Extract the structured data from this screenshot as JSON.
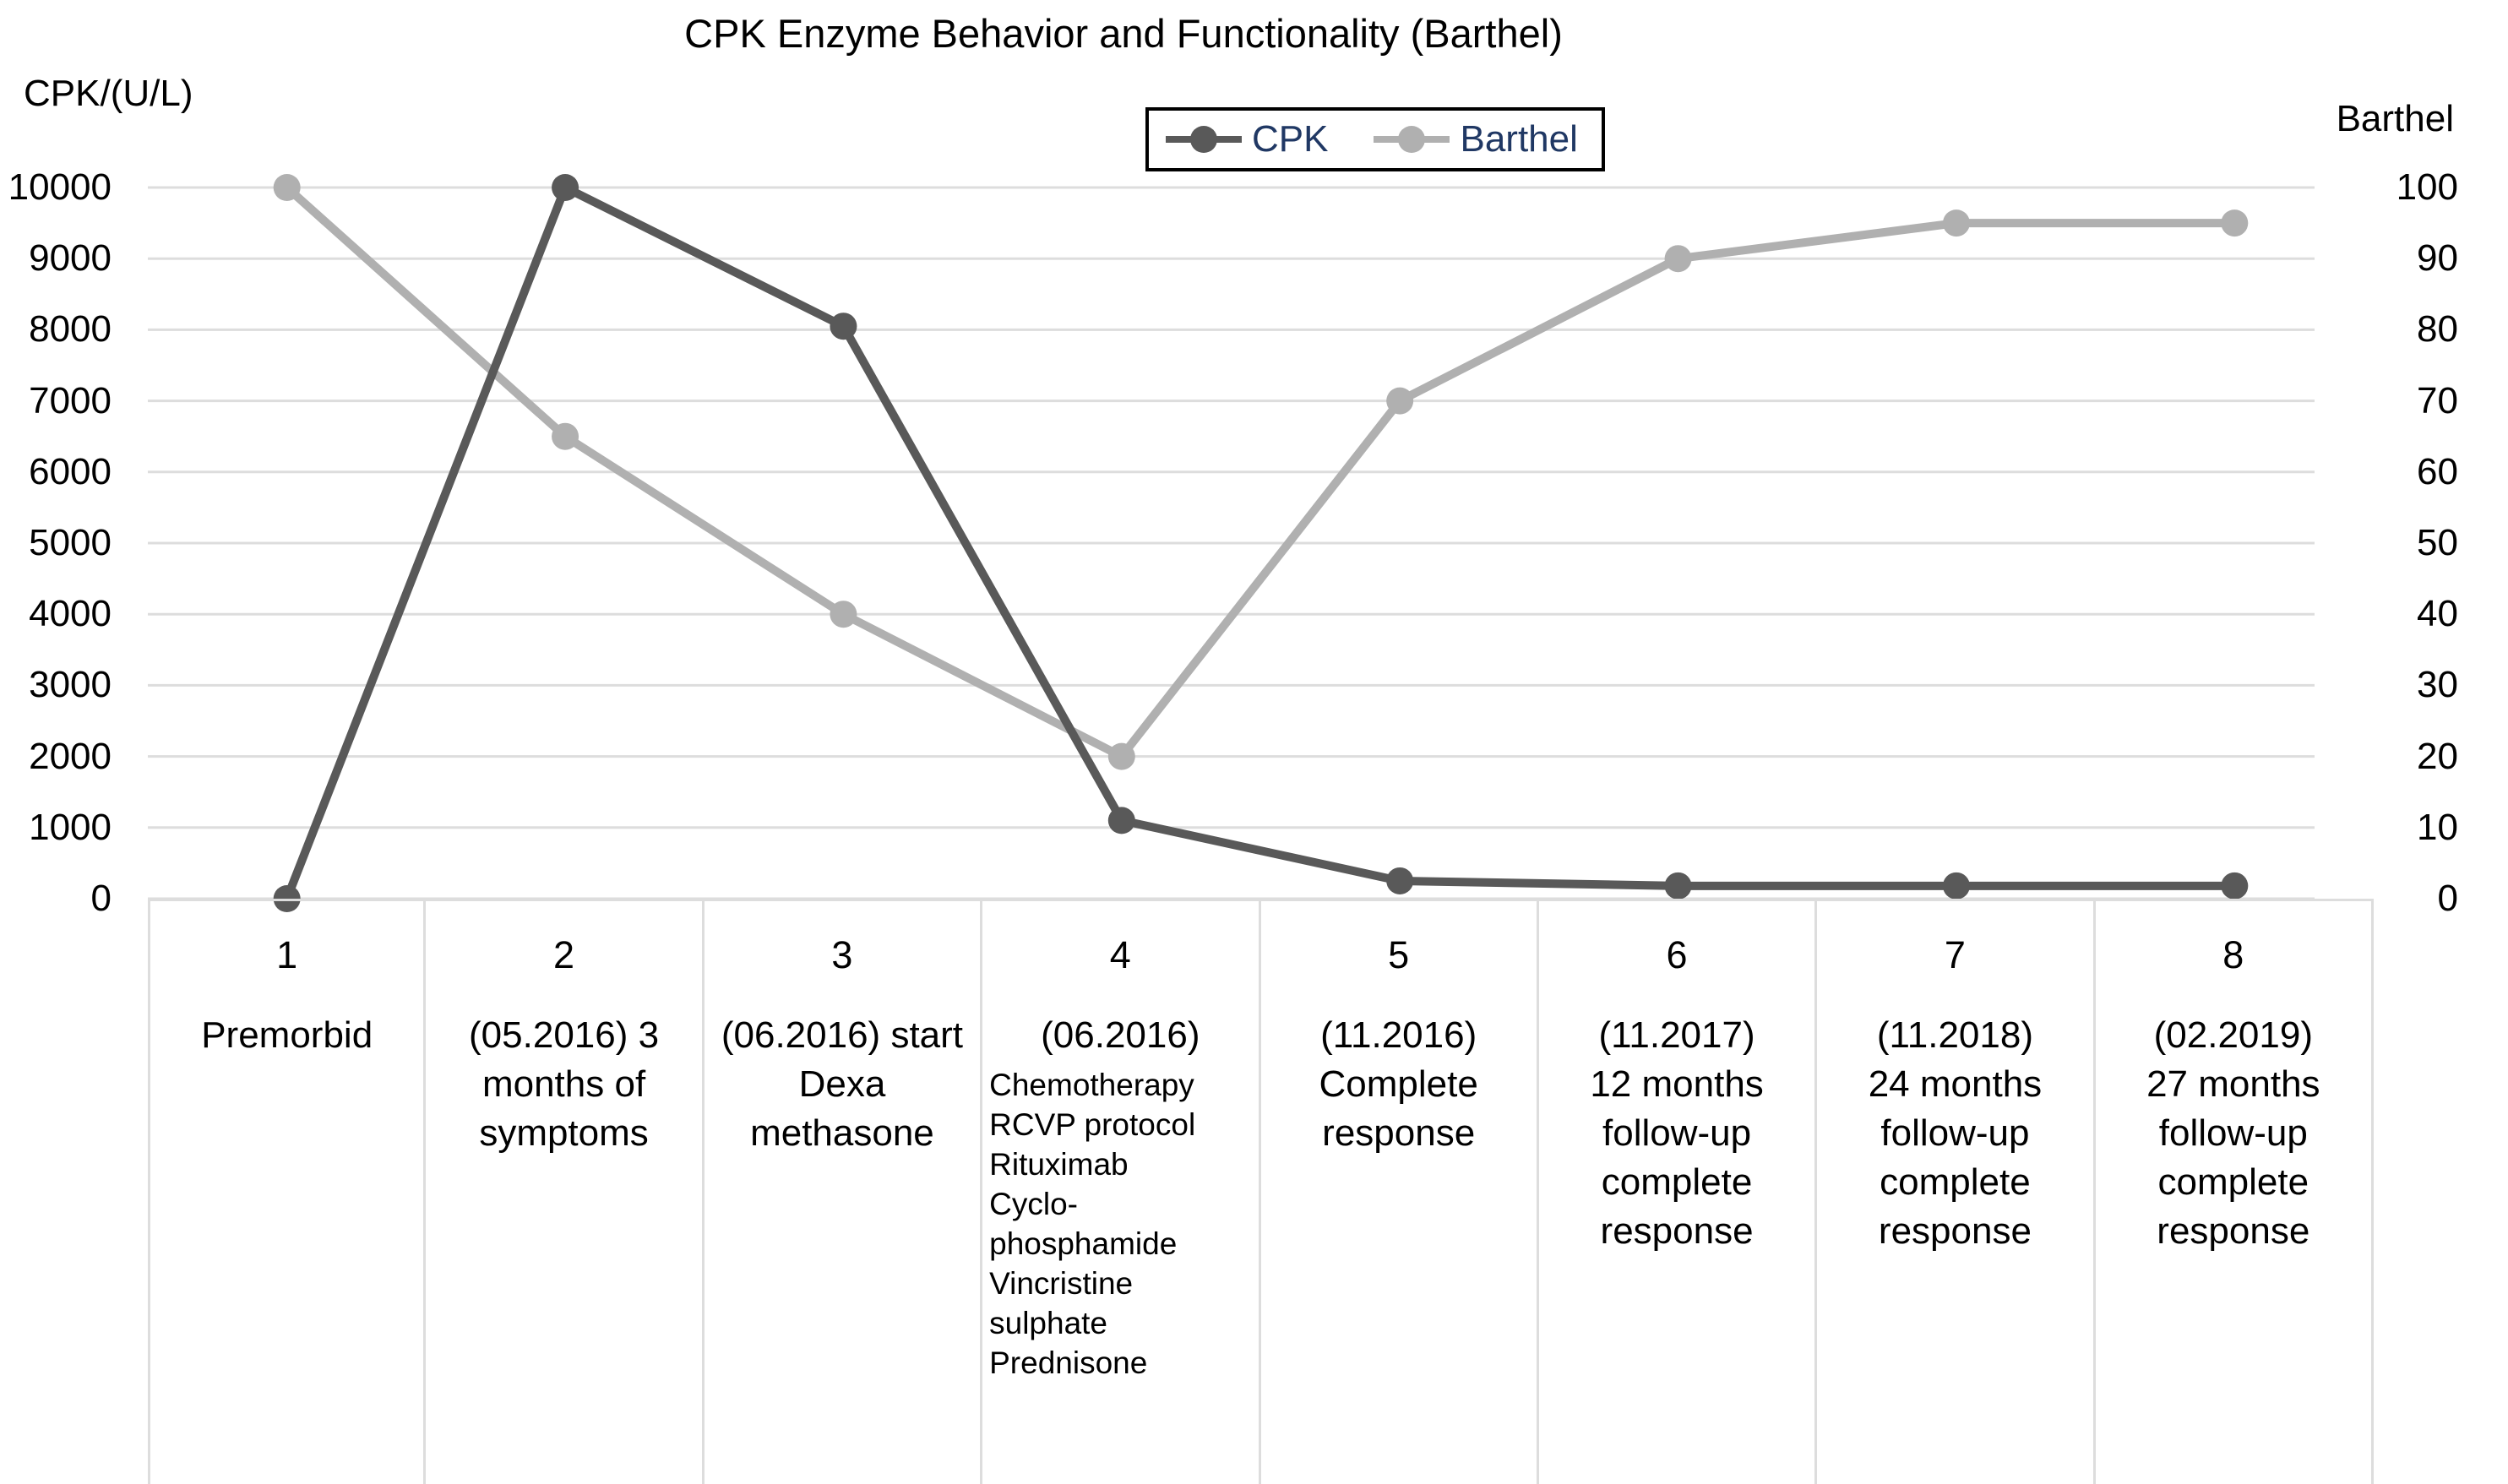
{
  "title": "CPK Enzyme Behavior and Functionality (Barthel)",
  "left_axis": {
    "label": "CPK/(U/L)",
    "min": 0,
    "max": 10000,
    "tick_step": 1000,
    "ticks": [
      "10000",
      "9000",
      "8000",
      "7000",
      "6000",
      "5000",
      "4000",
      "3000",
      "2000",
      "1000",
      "0"
    ]
  },
  "right_axis": {
    "label": "Barthel",
    "min": 0,
    "max": 100,
    "tick_step": 10,
    "ticks": [
      "100",
      "90",
      "80",
      "70",
      "60",
      "50",
      "40",
      "30",
      "20",
      "10",
      "0"
    ]
  },
  "legend": {
    "border_color": "#000000",
    "text_color": "#203864",
    "items": [
      {
        "label": "CPK",
        "color": "#595959"
      },
      {
        "label": "Barthel",
        "color": "#b0b0b0"
      }
    ]
  },
  "chart_data": {
    "type": "line",
    "title": "CPK Enzyme Behavior and Functionality (Barthel)",
    "x": [
      1,
      2,
      3,
      4,
      5,
      6,
      7,
      8
    ],
    "series": [
      {
        "name": "Barthel",
        "axis": "right",
        "color": "#b0b0b0",
        "values": [
          100,
          65,
          40,
          20,
          70,
          90,
          95,
          95
        ]
      },
      {
        "name": "CPK",
        "axis": "left",
        "color": "#595959",
        "values": [
          0,
          10000,
          8050,
          1100,
          250,
          180,
          180,
          180
        ]
      }
    ],
    "left_axis_label": "CPK/(U/L)",
    "right_axis_label": "Barthel",
    "left_ylim": [
      0,
      10000
    ],
    "right_ylim": [
      0,
      100
    ],
    "grid": true,
    "legend_position": "top-center",
    "categories": [
      "Premorbid",
      "(05.2016) 3 months of symptoms",
      "(06.2016) start Dexa methasone",
      "(06.2016) Chemotherapy RCVP protocol Rituximab Cyclo-phosphamide Vincristine sulphate Prednisone",
      "(11.2016) Complete response",
      "(11.2017) 12 months follow-up complete response",
      "(11.2018) 24 months follow-up complete response",
      "(02.2019) 27 months follow-up complete response"
    ]
  },
  "x_table": {
    "columns": [
      {
        "number": "1",
        "lines": [
          "Premorbid"
        ]
      },
      {
        "number": "2",
        "lines": [
          "(05.2016) 3",
          "months of",
          "symptoms"
        ]
      },
      {
        "number": "3",
        "lines": [
          "(06.2016) start",
          "Dexa",
          "methasone"
        ]
      },
      {
        "number": "4",
        "lines": [
          "(06.2016)"
        ],
        "drug_lines": [
          "Chemotherapy",
          "RCVP protocol",
          "Rituximab",
          "Cyclo-",
          "phosphamide",
          "Vincristine",
          "sulphate",
          "Prednisone"
        ]
      },
      {
        "number": "5",
        "lines": [
          "(11.2016)",
          "Complete",
          "response"
        ]
      },
      {
        "number": "6",
        "lines": [
          "(11.2017)",
          "12 months",
          "follow-up",
          "complete",
          "response"
        ]
      },
      {
        "number": "7",
        "lines": [
          "(11.2018)",
          "24 months",
          "follow-up",
          "complete",
          "response"
        ]
      },
      {
        "number": "8",
        "lines": [
          "(02.2019)",
          "27 months",
          "follow-up",
          "complete",
          "response"
        ]
      }
    ]
  },
  "colors": {
    "background": "#ffffff",
    "cpk_series": "#595959",
    "barthel_series": "#b0b0b0",
    "gridline": "#dddddd",
    "legend_text": "#203864",
    "text": "#000000",
    "legend_border": "#000000"
  }
}
